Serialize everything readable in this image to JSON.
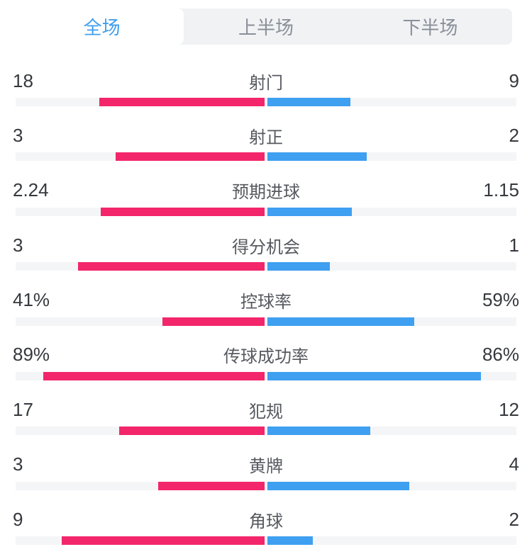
{
  "tabs": {
    "items": [
      {
        "label": "全场",
        "active": true
      },
      {
        "label": "上半场",
        "active": false
      },
      {
        "label": "下半场",
        "active": false
      }
    ]
  },
  "colors": {
    "home_bar": "#F3266B",
    "away_bar": "#3F9FF0",
    "track": "#F4F5F7",
    "tab_bar_bg": "#F1F2F4",
    "tab_active_text": "#3F9FF0",
    "tab_inactive_text": "#8A9099",
    "value_text": "#35383D",
    "label_text": "#56595F"
  },
  "stats": {
    "rows": [
      {
        "label": "射门",
        "home": 18,
        "away": 9,
        "home_display": "18",
        "away_display": "9",
        "percent": false
      },
      {
        "label": "射正",
        "home": 3,
        "away": 2,
        "home_display": "3",
        "away_display": "2",
        "percent": false
      },
      {
        "label": "预期进球",
        "home": 2.24,
        "away": 1.15,
        "home_display": "2.24",
        "away_display": "1.15",
        "percent": false
      },
      {
        "label": "得分机会",
        "home": 3,
        "away": 1,
        "home_display": "3",
        "away_display": "1",
        "percent": false
      },
      {
        "label": "控球率",
        "home": 41,
        "away": 59,
        "home_display": "41%",
        "away_display": "59%",
        "percent": true
      },
      {
        "label": "传球成功率",
        "home": 89,
        "away": 86,
        "home_display": "89%",
        "away_display": "86%",
        "percent": true
      },
      {
        "label": "犯规",
        "home": 17,
        "away": 12,
        "home_display": "17",
        "away_display": "12",
        "percent": false
      },
      {
        "label": "黄牌",
        "home": 3,
        "away": 4,
        "home_display": "3",
        "away_display": "4",
        "percent": false
      },
      {
        "label": "角球",
        "home": 9,
        "away": 2,
        "home_display": "9",
        "away_display": "2",
        "percent": false
      }
    ]
  },
  "chart_data": {
    "type": "bar",
    "orientation": "horizontal-paired",
    "categories": [
      "射门",
      "射正",
      "预期进球",
      "得分机会",
      "控球率",
      "传球成功率",
      "犯规",
      "黄牌",
      "角球"
    ],
    "series": [
      {
        "name": "home",
        "color": "#F3266B",
        "values": [
          18,
          3,
          2.24,
          3,
          41,
          89,
          17,
          3,
          9
        ]
      },
      {
        "name": "away",
        "color": "#3F9FF0",
        "values": [
          9,
          2,
          1.15,
          1,
          59,
          86,
          12,
          4,
          2
        ]
      }
    ],
    "title": "全场",
    "legend_position": "none",
    "grid": false
  }
}
